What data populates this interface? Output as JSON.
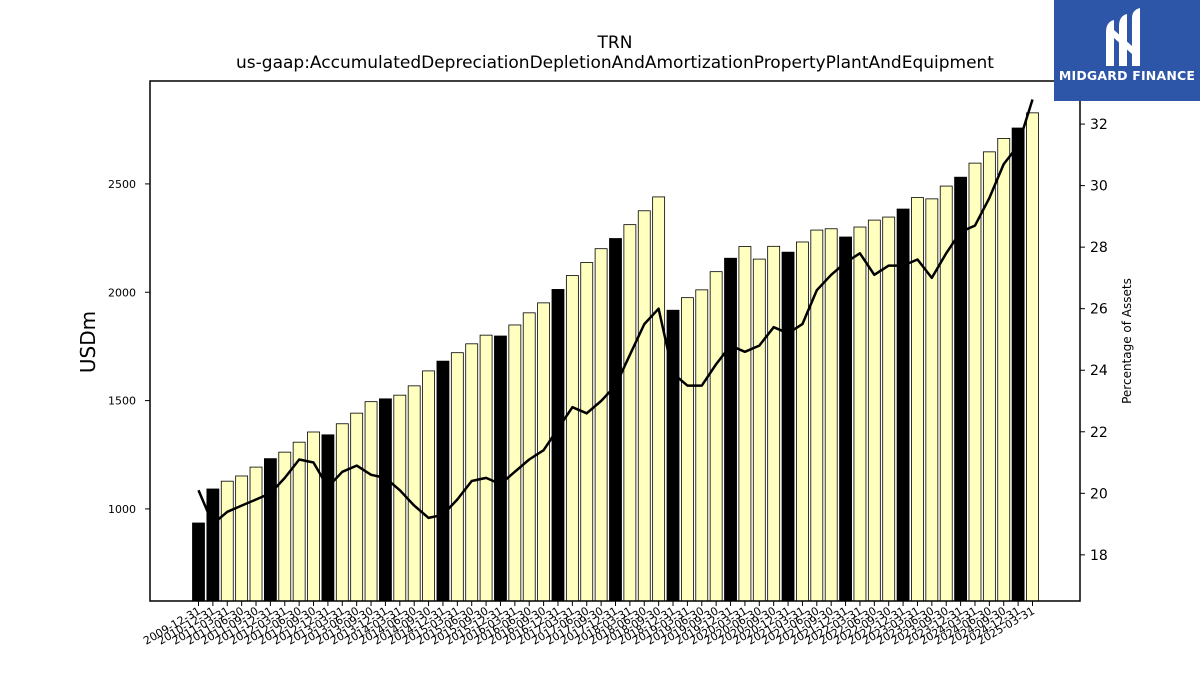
{
  "logo": {
    "text": "MIDGARD FINANCE",
    "bg_color": "#2d55a8",
    "icon": "midgard-m-logo-icon"
  },
  "chart_data": {
    "type": "bar",
    "title": "TRN",
    "subtitle": "us-gaap:AccumulatedDepreciationDepletionAndAmortizationPropertyPlantAndEquipment",
    "ylabel": "USDm",
    "y2label": "Percentage of Assets",
    "ylim": [
      575,
      2975
    ],
    "y2lim": [
      16.5,
      33.4
    ],
    "yticks": [
      1000,
      1500,
      2000,
      2500
    ],
    "y2ticks": [
      18,
      20,
      22,
      24,
      26,
      28,
      30,
      32
    ],
    "grid": false,
    "colors": {
      "annual_bar": "#000000",
      "quarter_bar": "#ffffc0",
      "bar_edge": "#000000",
      "line": "#000000"
    },
    "categories": [
      "2009-12-31",
      "2010-12-31",
      "2011-03-31",
      "2011-06-30",
      "2011-09-30",
      "2011-12-31",
      "2012-03-31",
      "2012-06-30",
      "2012-09-30",
      "2012-12-31",
      "2013-03-31",
      "2013-06-30",
      "2013-09-30",
      "2013-12-31",
      "2014-03-31",
      "2014-06-30",
      "2014-09-30",
      "2014-12-31",
      "2015-03-31",
      "2015-06-30",
      "2015-09-30",
      "2015-12-31",
      "2016-03-31",
      "2016-06-30",
      "2016-09-30",
      "2016-12-31",
      "2017-03-31",
      "2017-06-30",
      "2017-09-30",
      "2017-12-31",
      "2018-03-31",
      "2018-06-30",
      "2018-09-30",
      "2018-12-31",
      "2019-03-31",
      "2019-06-30",
      "2019-09-30",
      "2019-12-31",
      "2020-03-31",
      "2020-06-30",
      "2020-09-30",
      "2020-12-31",
      "2021-03-31",
      "2021-06-30",
      "2021-09-30",
      "2021-12-31",
      "2022-03-31",
      "2022-06-30",
      "2022-09-30",
      "2022-12-31",
      "2023-03-31",
      "2023-06-30",
      "2023-09-30",
      "2023-12-31",
      "2024-03-31",
      "2024-06-30",
      "2024-09-30",
      "2024-12-31",
      "2025-03-31"
    ],
    "values": [
      935,
      1092,
      1128,
      1152,
      1193,
      1232,
      1262,
      1308,
      1355,
      1342,
      1393,
      1442,
      1495,
      1508,
      1525,
      1568,
      1637,
      1682,
      1721,
      1762,
      1802,
      1798,
      1849,
      1905,
      1951,
      2013,
      2077,
      2137,
      2201,
      2248,
      2312,
      2376,
      2440,
      1917,
      1975,
      2011,
      2095,
      2157,
      2211,
      2153,
      2212,
      2185,
      2232,
      2287,
      2293,
      2255,
      2301,
      2333,
      2347,
      2384,
      2437,
      2431,
      2490,
      2531,
      2596,
      2648,
      2710,
      2758,
      2828
    ],
    "annual_flags": [
      true,
      true,
      false,
      false,
      false,
      true,
      false,
      false,
      false,
      true,
      false,
      false,
      false,
      true,
      false,
      false,
      false,
      true,
      false,
      false,
      false,
      true,
      false,
      false,
      false,
      true,
      false,
      false,
      false,
      true,
      false,
      false,
      false,
      true,
      false,
      false,
      false,
      true,
      false,
      false,
      false,
      true,
      false,
      false,
      false,
      true,
      false,
      false,
      false,
      true,
      false,
      false,
      false,
      true,
      false,
      false,
      false,
      true,
      false
    ],
    "series": [
      {
        "name": "Percentage of Assets",
        "axis": "right",
        "values": [
          20.1,
          19.0,
          19.4,
          19.6,
          19.8,
          20.0,
          20.5,
          21.1,
          21.0,
          20.2,
          20.7,
          20.9,
          20.6,
          20.5,
          20.1,
          19.6,
          19.2,
          19.3,
          19.8,
          20.4,
          20.5,
          20.3,
          20.7,
          21.1,
          21.4,
          22.1,
          22.8,
          22.6,
          23.0,
          23.5,
          24.5,
          25.5,
          26.0,
          23.9,
          23.5,
          23.5,
          24.2,
          24.8,
          24.6,
          24.8,
          25.4,
          25.2,
          25.5,
          26.6,
          27.1,
          27.5,
          27.8,
          27.1,
          27.4,
          27.4,
          27.6,
          27.0,
          27.8,
          28.5,
          28.7,
          29.6,
          30.7,
          31.3,
          32.8
        ]
      }
    ]
  }
}
